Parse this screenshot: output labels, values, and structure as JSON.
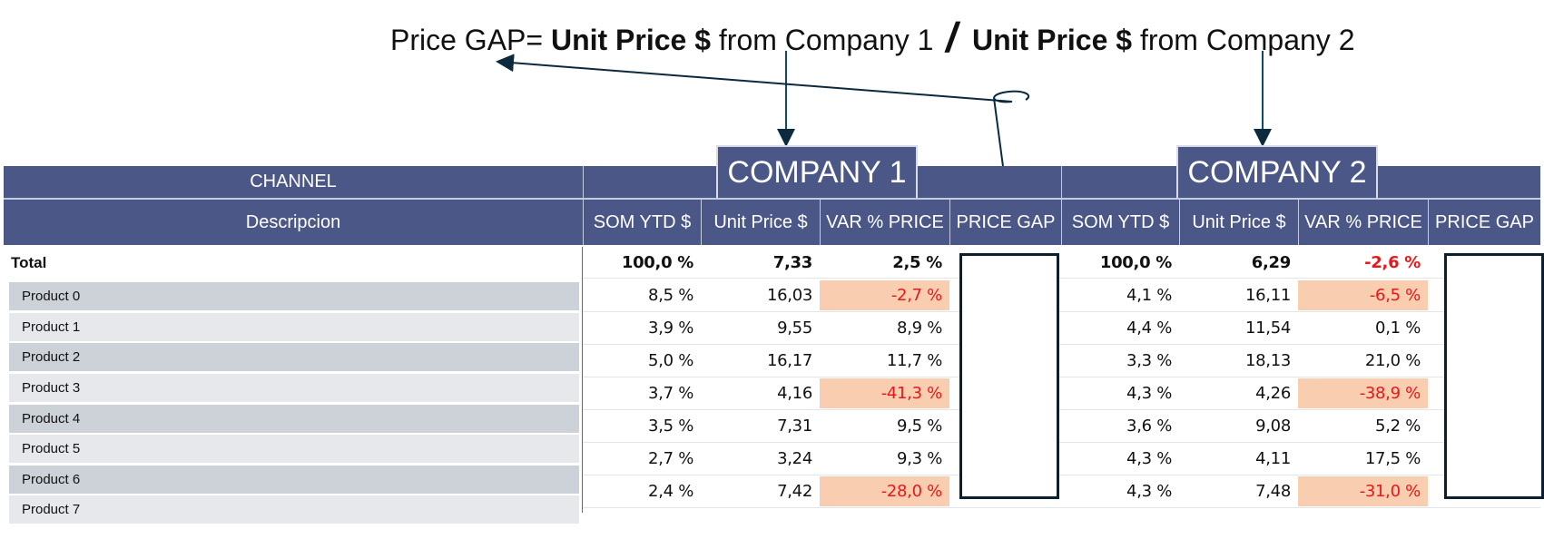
{
  "formula": {
    "prefix": "Price GAP=",
    "term1_bold": "Unit Price $",
    "term1_rest": " from Company 1",
    "operator": "/",
    "term2_bold": "Unit Price $",
    "term2_rest": " from Company 2"
  },
  "table": {
    "group_header": "CHANNEL",
    "row_header": "Descripcion",
    "companies": [
      {
        "name": "COMPANY 1"
      },
      {
        "name": "COMPANY 2"
      }
    ],
    "columns": [
      "SOM YTD $",
      "Unit Price $",
      "VAR % PRICE",
      "PRICE GAP"
    ],
    "total": {
      "label": "Total",
      "c1": {
        "som": "100,0 %",
        "price": "7,33",
        "var": "2,5 %",
        "var_negative": false
      },
      "c2": {
        "som": "100,0 %",
        "price": "6,29",
        "var": "-2,6 %",
        "var_negative": true
      }
    },
    "rows": [
      {
        "label": "Product 0",
        "c1": {
          "som": "8,5 %",
          "price": "16,03",
          "var": "-2,7 %",
          "highlight": true
        },
        "c2": {
          "som": "4,1 %",
          "price": "16,11",
          "var": "-6,5 %",
          "highlight": true
        }
      },
      {
        "label": "Product 1",
        "c1": {
          "som": "3,9 %",
          "price": "9,55",
          "var": "8,9 %",
          "highlight": false
        },
        "c2": {
          "som": "4,4 %",
          "price": "11,54",
          "var": "0,1 %",
          "highlight": false
        }
      },
      {
        "label": "Product 2",
        "c1": {
          "som": "5,0 %",
          "price": "16,17",
          "var": "11,7 %",
          "highlight": false
        },
        "c2": {
          "som": "3,3 %",
          "price": "18,13",
          "var": "21,0 %",
          "highlight": false
        }
      },
      {
        "label": "Product 3",
        "c1": {
          "som": "3,7 %",
          "price": "4,16",
          "var": "-41,3 %",
          "highlight": true
        },
        "c2": {
          "som": "4,3 %",
          "price": "4,26",
          "var": "-38,9 %",
          "highlight": true
        }
      },
      {
        "label": "Product 4",
        "c1": {
          "som": "3,5 %",
          "price": "7,31",
          "var": "9,5 %",
          "highlight": false
        },
        "c2": {
          "som": "3,6 %",
          "price": "9,08",
          "var": "5,2 %",
          "highlight": false
        }
      },
      {
        "label": "Product 5",
        "c1": {
          "som": "2,7 %",
          "price": "3,24",
          "var": "9,3 %",
          "highlight": false
        },
        "c2": {
          "som": "4,3 %",
          "price": "4,11",
          "var": "17,5 %",
          "highlight": false
        }
      },
      {
        "label": "Product 6",
        "c1": {
          "som": "2,4 %",
          "price": "7,42",
          "var": "-28,0 %",
          "highlight": true
        },
        "c2": {
          "som": "4,3 %",
          "price": "7,48",
          "var": "-31,0 %",
          "highlight": true
        }
      },
      {
        "label": "Product 7"
      }
    ],
    "colors": {
      "header_bg": "#4a5787",
      "negative": "#e8181a",
      "highlight": "#f8cdb0",
      "row_dark": "#cdd1d8",
      "row_light": "#e6e8eb"
    }
  }
}
